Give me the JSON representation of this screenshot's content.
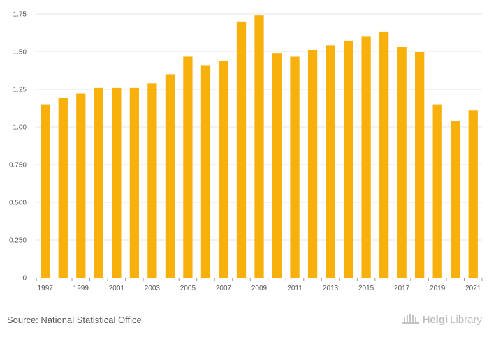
{
  "chart_data": {
    "type": "bar",
    "title": "",
    "xlabel": "",
    "ylabel": "",
    "ylim": [
      0,
      1.75
    ],
    "yticks": [
      "0",
      "0.250",
      "0.500",
      "0.750",
      "1.00",
      "1.25",
      "1.50",
      "1.75"
    ],
    "ytick_values": [
      0,
      0.25,
      0.5,
      0.75,
      1.0,
      1.25,
      1.5,
      1.75
    ],
    "categories": [
      "1997",
      "1998",
      "1999",
      "2000",
      "2001",
      "2002",
      "2003",
      "2004",
      "2005",
      "2006",
      "2007",
      "2008",
      "2009",
      "2010",
      "2011",
      "2012",
      "2013",
      "2014",
      "2015",
      "2016",
      "2017",
      "2018",
      "2019",
      "2020",
      "2021"
    ],
    "xtick_labels": [
      "1997",
      "1999",
      "2001",
      "2003",
      "2005",
      "2007",
      "2009",
      "2011",
      "2013",
      "2015",
      "2017",
      "2019",
      "2021"
    ],
    "values": [
      1.15,
      1.19,
      1.22,
      1.26,
      1.26,
      1.26,
      1.29,
      1.35,
      1.47,
      1.41,
      1.44,
      1.7,
      1.74,
      1.49,
      1.47,
      1.51,
      1.54,
      1.57,
      1.6,
      1.63,
      1.53,
      1.5,
      1.15,
      1.04,
      1.11
    ],
    "bar_color": "#f7b00c",
    "grid": true,
    "grid_color": "#e6e6e6"
  },
  "footer": {
    "source": "Source: National Statistical Office",
    "logo_brand": "Helgi",
    "logo_rest": "Library"
  }
}
